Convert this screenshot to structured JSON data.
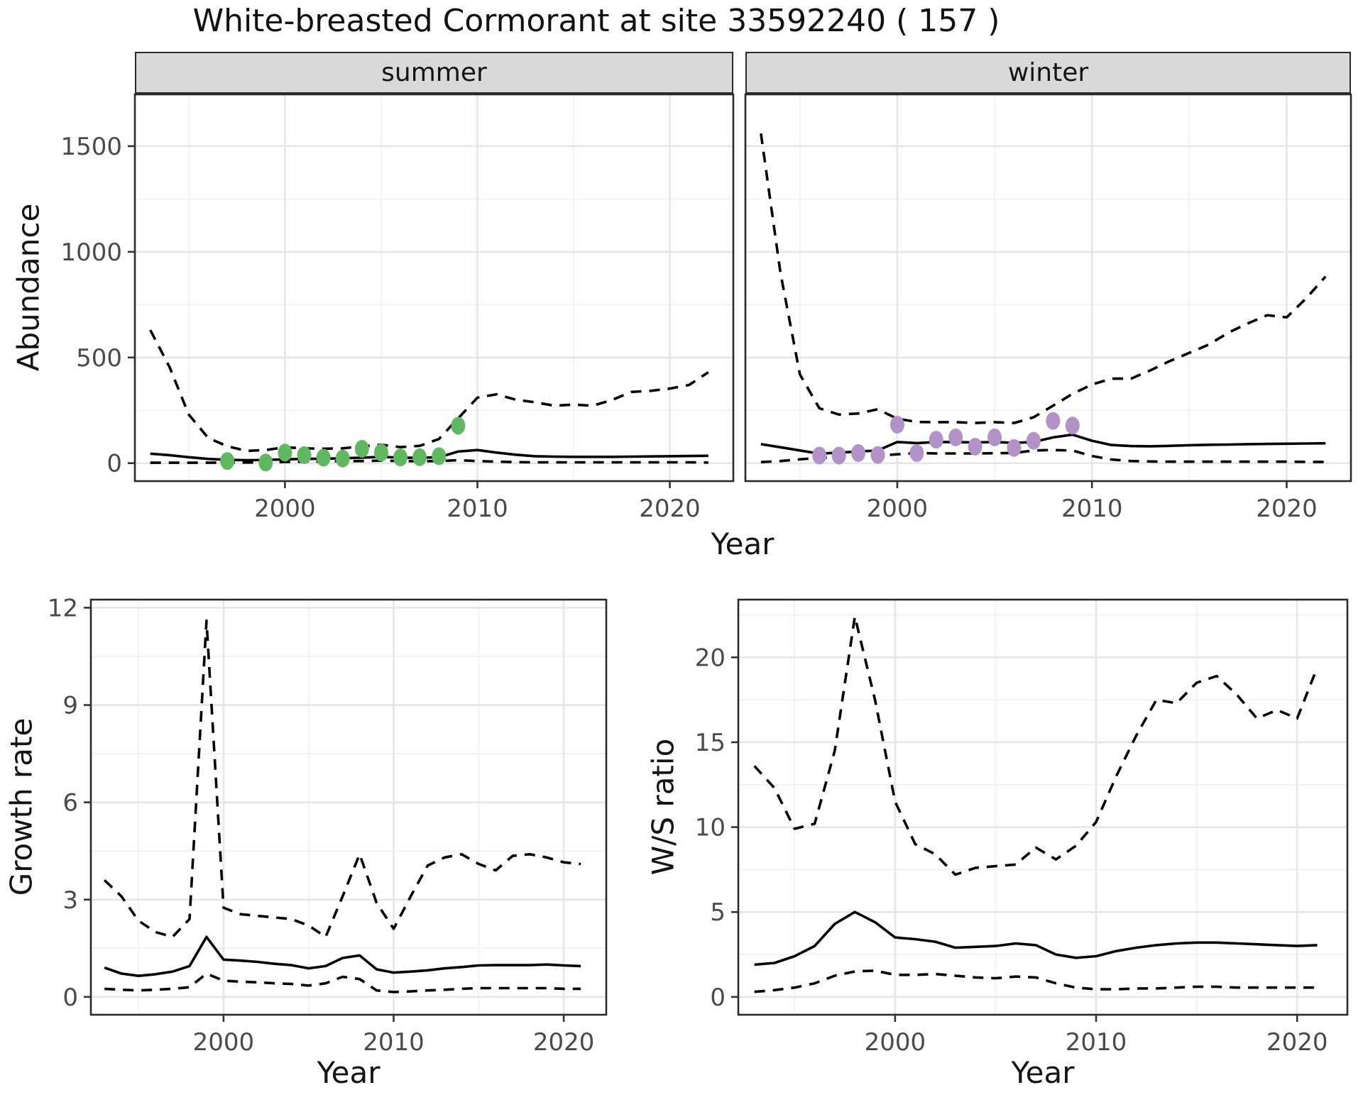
{
  "title": "White-breasted Cormorant at site 33592240 ( 157 )",
  "facets": [
    "summer",
    "winter"
  ],
  "axes": {
    "year": "Year",
    "abundance": "Abundance",
    "growth_rate": "Growth rate",
    "ws_ratio": "W/S ratio"
  },
  "style": {
    "summer_point_color": "#62b862",
    "winter_point_color": "#b292c7",
    "line_color": "#000000",
    "strip_bg": "#d9d9d9",
    "grid_major": "#e6e6e6",
    "grid_minor": "#f1f1f1",
    "panel_border": "#2a2a2a",
    "tick_label_color": "#4a4a4a"
  },
  "chart_data": [
    {
      "id": "abundance-summer",
      "type": "line",
      "facet": "summer",
      "xlabel": "Year",
      "ylabel": "Abundance",
      "xlim": [
        1992.2,
        2023.3
      ],
      "ylim": [
        -85,
        1745
      ],
      "xticks": [
        2000,
        2010,
        2020
      ],
      "xticks_minor": [
        1995,
        2005,
        2015
      ],
      "yticks": [
        0,
        500,
        1000,
        1500
      ],
      "yticks_minor": [
        250,
        750,
        1250,
        1750
      ],
      "years": [
        1993,
        1994,
        1995,
        1996,
        1997,
        1998,
        1999,
        2000,
        2001,
        2002,
        2003,
        2004,
        2005,
        2006,
        2007,
        2008,
        2009,
        2010,
        2011,
        2012,
        2013,
        2014,
        2015,
        2016,
        2017,
        2018,
        2019,
        2020,
        2021,
        2022
      ],
      "series": [
        {
          "name": "upper-ci",
          "style": "dashed",
          "values": [
            630,
            455,
            230,
            120,
            80,
            58,
            62,
            75,
            70,
            68,
            70,
            80,
            87,
            76,
            82,
            114,
            212,
            310,
            326,
            300,
            288,
            272,
            277,
            272,
            299,
            337,
            342,
            353,
            370,
            430
          ]
        },
        {
          "name": "median",
          "style": "solid",
          "values": [
            45,
            38,
            28,
            20,
            16,
            14,
            15,
            18,
            20,
            21,
            23,
            26,
            30,
            26,
            25,
            28,
            55,
            62,
            50,
            40,
            33,
            31,
            30,
            30,
            30,
            31,
            32,
            33,
            34,
            35
          ]
        },
        {
          "name": "lower-ci",
          "style": "dashed",
          "values": [
            2,
            2,
            2,
            2,
            3,
            3,
            4,
            6,
            7,
            8,
            9,
            10,
            12,
            10,
            9,
            10,
            14,
            10,
            7,
            5,
            4,
            4,
            4,
            4,
            4,
            4,
            4,
            4,
            4,
            3
          ]
        },
        {
          "name": "observed-counts",
          "style": "points",
          "color": "#62b862",
          "x": [
            1997,
            1999,
            2000,
            2001,
            2002,
            2003,
            2004,
            2005,
            2006,
            2007,
            2008,
            2009
          ],
          "values": [
            10,
            3,
            50,
            38,
            26,
            22,
            68,
            50,
            27,
            28,
            33,
            177
          ]
        }
      ]
    },
    {
      "id": "abundance-winter",
      "type": "line",
      "facet": "winter",
      "xlabel": "Year",
      "ylabel": "Abundance",
      "xlim": [
        1992.2,
        2023.3
      ],
      "ylim": [
        -85,
        1745
      ],
      "xticks": [
        2000,
        2010,
        2020
      ],
      "xticks_minor": [
        1995,
        2005,
        2015
      ],
      "yticks": [
        0,
        500,
        1000,
        1500
      ],
      "yticks_minor": [
        250,
        750,
        1250,
        1750
      ],
      "years": [
        1993,
        1994,
        1995,
        1996,
        1997,
        1998,
        1999,
        2000,
        2001,
        2002,
        2003,
        2004,
        2005,
        2006,
        2007,
        2008,
        2009,
        2010,
        2011,
        2012,
        2013,
        2014,
        2015,
        2016,
        2017,
        2018,
        2019,
        2020,
        2021,
        2022
      ],
      "series": [
        {
          "name": "upper-ci",
          "style": "dashed",
          "values": [
            1560,
            900,
            420,
            260,
            230,
            235,
            255,
            210,
            195,
            194,
            194,
            190,
            194,
            190,
            217,
            272,
            328,
            372,
            400,
            400,
            439,
            483,
            522,
            561,
            617,
            661,
            700,
            690,
            780,
            883
          ]
        },
        {
          "name": "median",
          "style": "solid",
          "values": [
            90,
            75,
            60,
            45,
            50,
            55,
            60,
            100,
            95,
            100,
            100,
            98,
            100,
            96,
            100,
            122,
            135,
            106,
            86,
            81,
            80,
            82,
            85,
            87,
            88,
            90,
            91,
            92,
            93,
            94
          ]
        },
        {
          "name": "lower-ci",
          "style": "dashed",
          "values": [
            5,
            10,
            18,
            25,
            28,
            30,
            35,
            42,
            48,
            46,
            46,
            46,
            47,
            48,
            60,
            62,
            60,
            34,
            17,
            10,
            8,
            7,
            7,
            7,
            7,
            7,
            7,
            7,
            6,
            6
          ]
        },
        {
          "name": "observed-counts",
          "style": "points",
          "color": "#b292c7",
          "x": [
            1996,
            1997,
            1998,
            1999,
            2000,
            2001,
            2002,
            2003,
            2004,
            2005,
            2006,
            2007,
            2008,
            2009
          ],
          "values": [
            36,
            36,
            48,
            39,
            182,
            48,
            111,
            122,
            78,
            122,
            72,
            106,
            200,
            178
          ]
        }
      ]
    },
    {
      "id": "growth-rate",
      "type": "line",
      "facet": "",
      "xlabel": "Year",
      "ylabel": "Growth rate",
      "xlim": [
        1992.2,
        2022.5
      ],
      "ylim": [
        -0.55,
        12.25
      ],
      "xticks": [
        2000,
        2010,
        2020
      ],
      "xticks_minor": [
        1995,
        2005,
        2015
      ],
      "yticks": [
        0,
        3,
        6,
        9,
        12
      ],
      "yticks_minor": [
        1.5,
        4.5,
        7.5,
        10.5
      ],
      "years": [
        1993,
        1994,
        1995,
        1996,
        1997,
        1998,
        1999,
        2000,
        2001,
        2002,
        2003,
        2004,
        2005,
        2006,
        2007,
        2008,
        2009,
        2010,
        2011,
        2012,
        2013,
        2014,
        2015,
        2016,
        2017,
        2018,
        2019,
        2020,
        2021
      ],
      "series": [
        {
          "name": "upper-ci",
          "style": "dashed",
          "values": [
            3.6,
            3.1,
            2.35,
            2.0,
            1.85,
            2.4,
            11.6,
            2.75,
            2.55,
            2.5,
            2.45,
            2.4,
            2.2,
            1.85,
            3.1,
            4.4,
            2.9,
            2.1,
            3.1,
            4.05,
            4.3,
            4.4,
            4.1,
            3.9,
            4.35,
            4.4,
            4.3,
            4.15,
            4.1
          ]
        },
        {
          "name": "median",
          "style": "solid",
          "values": [
            0.9,
            0.72,
            0.65,
            0.7,
            0.78,
            0.95,
            1.85,
            1.15,
            1.12,
            1.08,
            1.02,
            0.98,
            0.88,
            0.95,
            1.2,
            1.28,
            0.85,
            0.75,
            0.78,
            0.82,
            0.88,
            0.92,
            0.97,
            0.98,
            0.98,
            0.98,
            1.0,
            0.97,
            0.95
          ]
        },
        {
          "name": "lower-ci",
          "style": "dashed",
          "values": [
            0.25,
            0.22,
            0.2,
            0.22,
            0.25,
            0.3,
            0.72,
            0.5,
            0.47,
            0.45,
            0.42,
            0.4,
            0.35,
            0.42,
            0.62,
            0.55,
            0.2,
            0.15,
            0.17,
            0.2,
            0.22,
            0.25,
            0.27,
            0.27,
            0.27,
            0.27,
            0.27,
            0.25,
            0.25
          ]
        }
      ]
    },
    {
      "id": "ws-ratio",
      "type": "line",
      "facet": "",
      "xlabel": "Year",
      "ylabel": "W/S ratio",
      "xlim": [
        1992.2,
        2022.5
      ],
      "ylim": [
        -1.05,
        23.4
      ],
      "xticks": [
        2000,
        2010,
        2020
      ],
      "xticks_minor": [
        1995,
        2005,
        2015
      ],
      "yticks": [
        0,
        5,
        10,
        15,
        20
      ],
      "yticks_minor": [
        2.5,
        7.5,
        12.5,
        17.5,
        22.5
      ],
      "years": [
        1993,
        1994,
        1995,
        1996,
        1997,
        1998,
        1999,
        2000,
        2001,
        2002,
        2003,
        2004,
        2005,
        2006,
        2007,
        2008,
        2009,
        2010,
        2011,
        2012,
        2013,
        2014,
        2015,
        2016,
        2017,
        2018,
        2019,
        2020,
        2021
      ],
      "series": [
        {
          "name": "upper-ci",
          "style": "dashed",
          "values": [
            13.6,
            12.3,
            9.9,
            10.2,
            14.5,
            22.4,
            17.5,
            11.5,
            9.0,
            8.4,
            7.2,
            7.6,
            7.7,
            7.8,
            8.8,
            8.1,
            8.9,
            10.3,
            13.0,
            15.4,
            17.5,
            17.3,
            18.5,
            18.9,
            17.8,
            16.4,
            16.9,
            16.4,
            19.4
          ]
        },
        {
          "name": "median",
          "style": "solid",
          "values": [
            1.9,
            2.0,
            2.4,
            3.0,
            4.3,
            5.0,
            4.4,
            3.5,
            3.4,
            3.25,
            2.9,
            2.95,
            3.0,
            3.15,
            3.05,
            2.5,
            2.3,
            2.4,
            2.7,
            2.9,
            3.05,
            3.15,
            3.2,
            3.2,
            3.15,
            3.1,
            3.05,
            3.0,
            3.05
          ]
        },
        {
          "name": "lower-ci",
          "style": "dashed",
          "values": [
            0.3,
            0.4,
            0.55,
            0.8,
            1.25,
            1.5,
            1.55,
            1.3,
            1.3,
            1.35,
            1.25,
            1.15,
            1.1,
            1.2,
            1.15,
            0.8,
            0.55,
            0.45,
            0.45,
            0.5,
            0.5,
            0.55,
            0.6,
            0.6,
            0.55,
            0.55,
            0.55,
            0.55,
            0.55
          ]
        }
      ]
    }
  ]
}
